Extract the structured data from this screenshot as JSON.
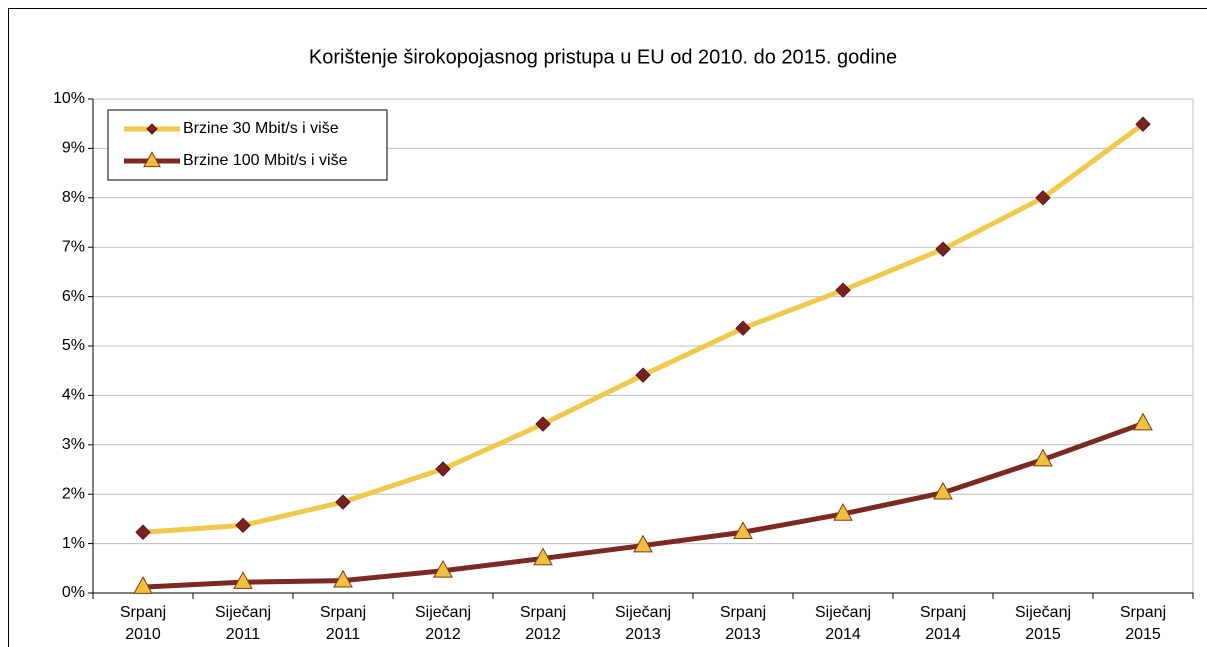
{
  "chart_data": {
    "type": "line",
    "title": "Korištenje širokopojasnog pristupa u EU od 2010. do 2015. godine",
    "categories": [
      "Srpanj 2010",
      "Siječanj 2011",
      "Srpanj 2011",
      "Siječanj 2012",
      "Srpanj 2012",
      "Siječanj 2013",
      "Srpanj 2013",
      "Siječanj 2014",
      "Srpanj 2014",
      "Siječanj 2015",
      "Srpanj 2015"
    ],
    "series": [
      {
        "name": "Brzine 30 Mbit/s i više",
        "color": "#f0c94c",
        "marker": "diamond",
        "marker_color": "#7a2222",
        "values": [
          1.23,
          1.37,
          1.84,
          2.51,
          3.42,
          4.41,
          5.36,
          6.13,
          6.96,
          8.0,
          9.49
        ]
      },
      {
        "name": "Brzine 100 Mbit/s i više",
        "color": "#7a2a22",
        "marker": "triangle",
        "marker_color": "#f2c040",
        "values": [
          0.12,
          0.22,
          0.25,
          0.45,
          0.7,
          0.96,
          1.23,
          1.6,
          2.03,
          2.7,
          3.43
        ]
      }
    ],
    "ylim": [
      0,
      10
    ],
    "yticks": [
      {
        "value": 0,
        "label": "0%"
      },
      {
        "value": 1,
        "label": "1%"
      },
      {
        "value": 2,
        "label": "2%"
      },
      {
        "value": 3,
        "label": "3%"
      },
      {
        "value": 4,
        "label": "4%"
      },
      {
        "value": 5,
        "label": "5%"
      },
      {
        "value": 6,
        "label": "6%"
      },
      {
        "value": 7,
        "label": "7%"
      },
      {
        "value": 8,
        "label": "8%"
      },
      {
        "value": 9,
        "label": "9%"
      },
      {
        "value": 10,
        "label": "10%"
      }
    ],
    "grid": true,
    "legend": "top-left"
  }
}
